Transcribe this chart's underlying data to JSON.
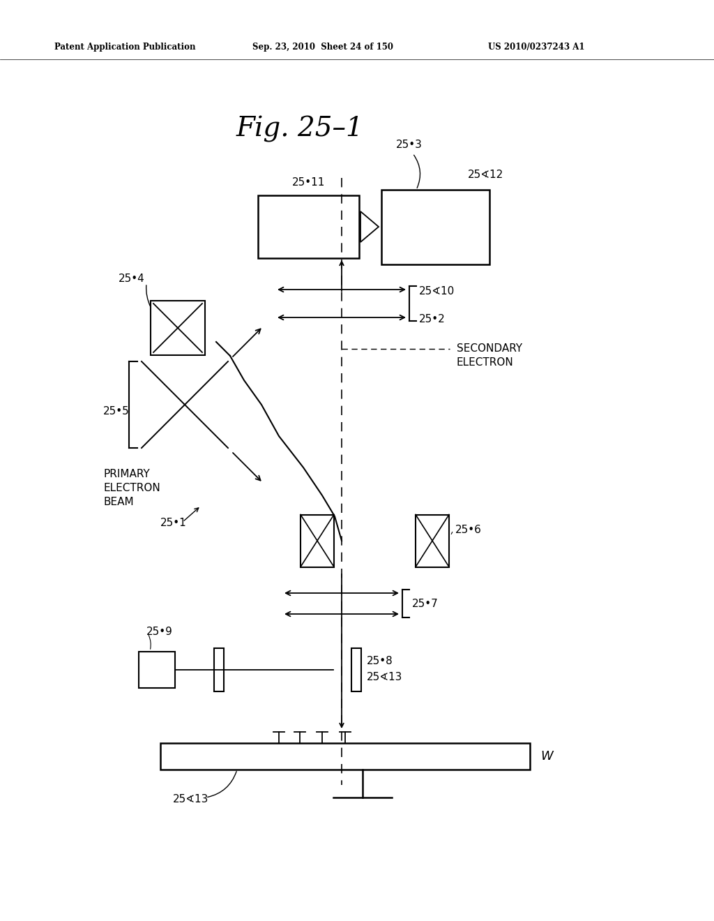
{
  "title": "Fig. 25–1",
  "header_left": "Patent Application Publication",
  "header_mid": "Sep. 23, 2010  Sheet 24 of 150",
  "header_right": "US 2010/0237243 A1",
  "background_color": "#ffffff",
  "line_color": "#000000",
  "fig_width": 10.24,
  "fig_height": 13.2,
  "dpi": 100
}
